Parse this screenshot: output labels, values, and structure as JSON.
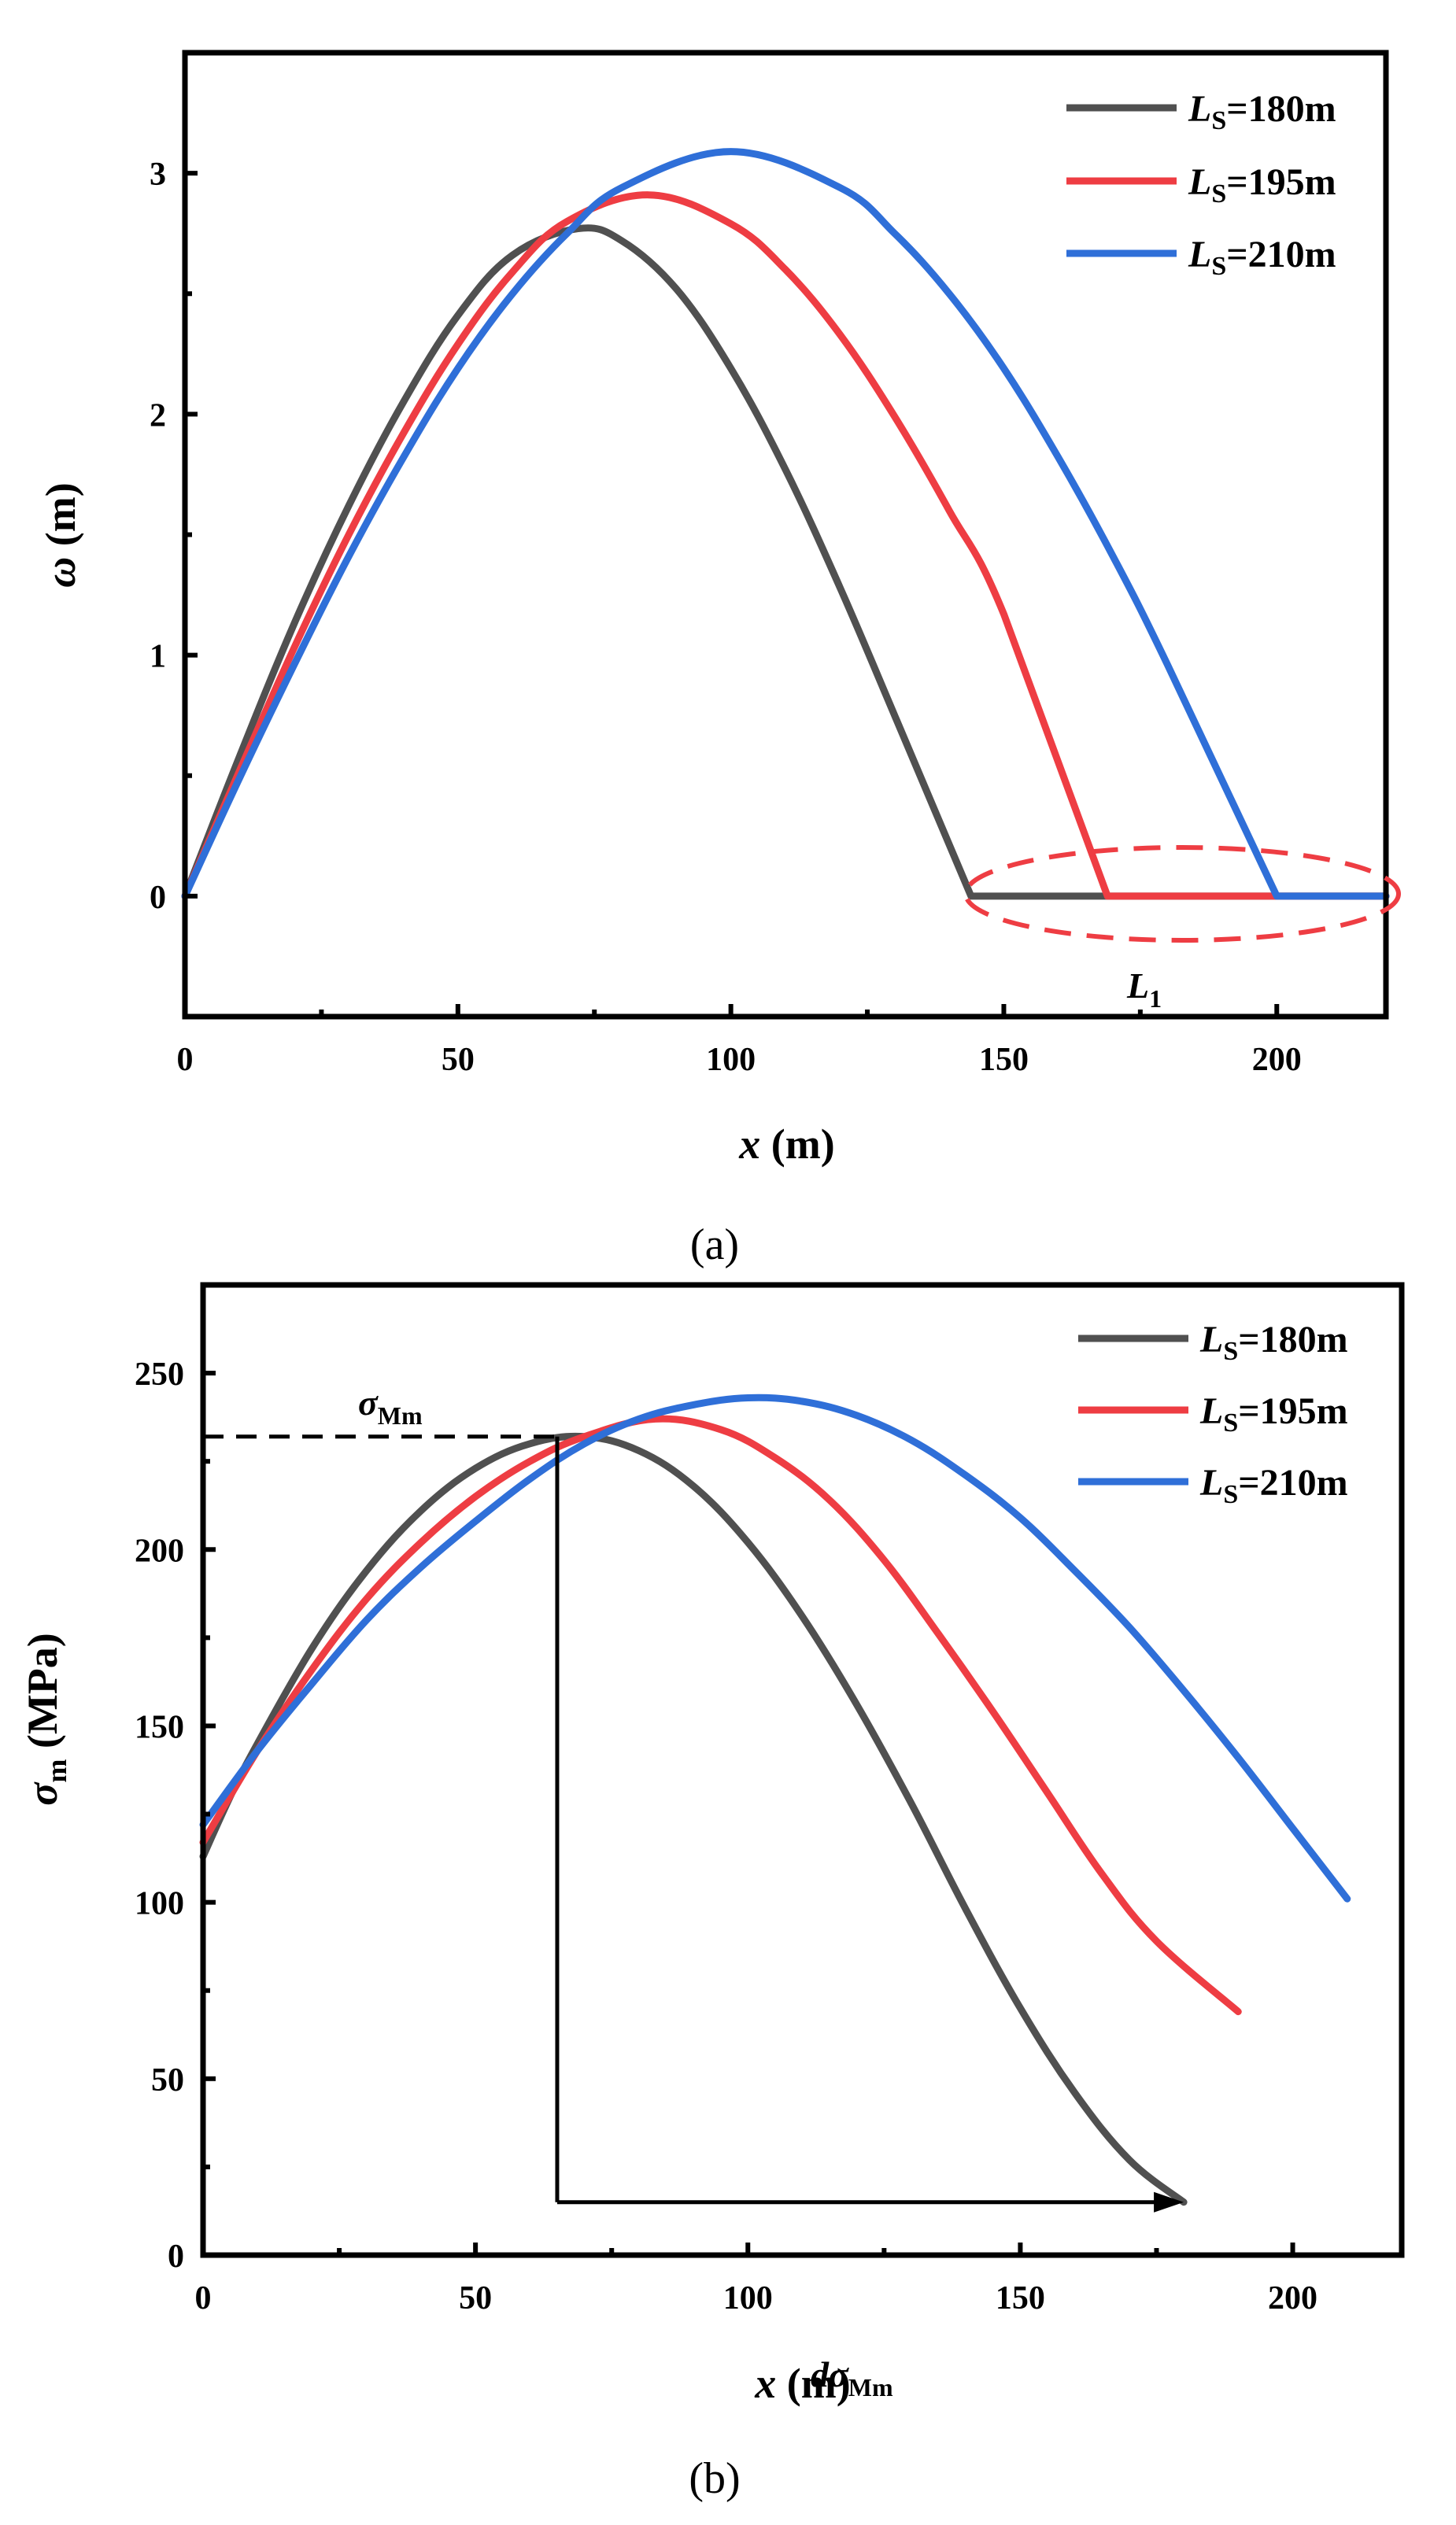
{
  "colors": {
    "s180": "#505050",
    "s195": "#ee3d43",
    "s210": "#2f6fd8",
    "annotation": "#ee3d43"
  },
  "chart_data": [
    {
      "type": "line",
      "panel_label": "(a)",
      "xlabel": {
        "var": "x",
        "unit": " (m)"
      },
      "ylabel": {
        "var": "ω",
        "unit": " (m)"
      },
      "xlim": [
        0,
        220
      ],
      "ylim": [
        -0.5,
        3.5
      ],
      "xticks": [
        0,
        50,
        100,
        150,
        200
      ],
      "yticks": [
        0,
        1,
        2,
        3
      ],
      "xtick_labels": [
        "0",
        "50",
        "100",
        "150",
        "200"
      ],
      "ytick_labels": [
        "0",
        "1",
        "2",
        "3"
      ],
      "legend": [
        {
          "sym": "L",
          "sub": "S",
          "rest": "=180m"
        },
        {
          "sym": "L",
          "sub": "S",
          "rest": "=195m"
        },
        {
          "sym": "L",
          "sub": "S",
          "rest": "=210m"
        }
      ],
      "annotation": {
        "sym": "L",
        "sub": "1"
      },
      "series": [
        {
          "name": "LS=180m",
          "peak_x": 72,
          "peak_y": 2.77,
          "end_x": 144,
          "x": [
            0,
            10,
            20,
            30,
            40,
            50,
            60,
            72,
            80,
            90,
            100,
            110,
            120,
            130,
            144,
            180,
            220
          ],
          "y": [
            0,
            0.58,
            1.13,
            1.62,
            2.05,
            2.41,
            2.66,
            2.77,
            2.72,
            2.52,
            2.19,
            1.77,
            1.28,
            0.75,
            0,
            0,
            0
          ]
        },
        {
          "name": "LS=195m",
          "peak_x": 85,
          "peak_y": 2.91,
          "end_x": 169,
          "x": [
            0,
            10,
            20,
            30,
            40,
            50,
            60,
            70,
            85,
            100,
            110,
            120,
            130,
            140,
            150,
            169,
            200,
            220
          ],
          "y": [
            0,
            0.52,
            1.03,
            1.5,
            1.92,
            2.29,
            2.59,
            2.8,
            2.91,
            2.79,
            2.6,
            2.33,
            1.99,
            1.6,
            1.17,
            0,
            0,
            0
          ]
        },
        {
          "name": "LS=210m",
          "peak_x": 100,
          "peak_y": 3.09,
          "end_x": 200,
          "x": [
            0,
            10,
            20,
            30,
            40,
            50,
            60,
            70,
            80,
            100,
            120,
            130,
            140,
            150,
            160,
            170,
            180,
            200,
            220
          ],
          "y": [
            0,
            0.49,
            0.96,
            1.41,
            1.82,
            2.19,
            2.5,
            2.75,
            2.94,
            3.09,
            2.94,
            2.75,
            2.5,
            2.19,
            1.82,
            1.41,
            0.96,
            0,
            0
          ]
        }
      ]
    },
    {
      "type": "line",
      "panel_label": "(b)",
      "xlabel": {
        "var": "x",
        "unit": " (m)"
      },
      "ylabel": {
        "var": "σ",
        "sub": "m",
        "unit": " (MPa)"
      },
      "xlim": [
        0,
        220
      ],
      "ylim": [
        0,
        275
      ],
      "xticks": [
        0,
        50,
        100,
        150,
        200
      ],
      "yticks": [
        0,
        50,
        100,
        150,
        200,
        250
      ],
      "xtick_labels": [
        "0",
        "50",
        "100",
        "150",
        "200"
      ],
      "ytick_labels": [
        "0",
        "50",
        "100",
        "150",
        "200",
        "250"
      ],
      "legend": [
        {
          "sym": "L",
          "sub": "S",
          "rest": "=180m"
        },
        {
          "sym": "L",
          "sub": "S",
          "rest": "=195m"
        },
        {
          "sym": "L",
          "sub": "S",
          "rest": "=210m"
        }
      ],
      "annotations": {
        "peak": {
          "sym": "σ",
          "sub": "Mm",
          "x": 65,
          "y": 232
        },
        "drop": {
          "sym": "dσ",
          "sub": "Mm",
          "x_end": 180,
          "y": 15
        }
      },
      "series": [
        {
          "name": "LS=180m",
          "x": [
            0,
            5,
            10,
            20,
            30,
            40,
            50,
            60,
            70,
            80,
            90,
            100,
            110,
            120,
            130,
            140,
            150,
            160,
            170,
            180
          ],
          "y": [
            113,
            130,
            145,
            172,
            194,
            211,
            223,
            230,
            232,
            228,
            218,
            202,
            181,
            156,
            128,
            98,
            70,
            46,
            27,
            15
          ]
        },
        {
          "name": "LS=195m",
          "x": [
            0,
            10,
            20,
            30,
            40,
            50,
            60,
            70,
            83,
            95,
            105,
            115,
            125,
            135,
            145,
            155,
            165,
            175,
            190
          ],
          "y": [
            117,
            143,
            166,
            186,
            202,
            215,
            225,
            232,
            237,
            234,
            226,
            214,
            197,
            176,
            154,
            131,
            108,
            89,
            69
          ]
        },
        {
          "name": "LS=210m",
          "x": [
            0,
            10,
            20,
            30,
            40,
            50,
            60,
            70,
            80,
            90,
            100,
            110,
            120,
            130,
            140,
            150,
            160,
            170,
            180,
            190,
            200,
            210
          ],
          "y": [
            122,
            143,
            162,
            180,
            195,
            208,
            220,
            230,
            237,
            241,
            243,
            242,
            238,
            231,
            221,
            209,
            194,
            178,
            160,
            141,
            121,
            101
          ]
        }
      ]
    }
  ]
}
